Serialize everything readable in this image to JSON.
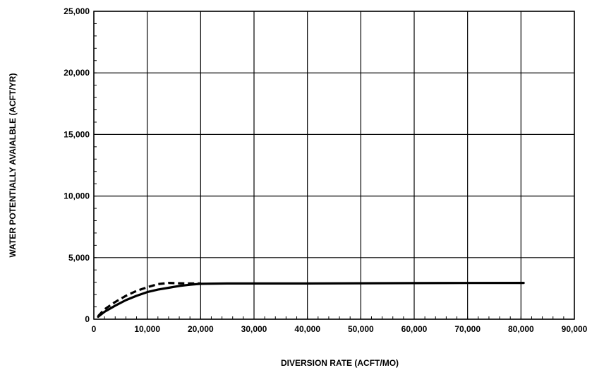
{
  "chart_data": {
    "type": "line",
    "title": "",
    "xlabel": "DIVERSION RATE (ACFT/MO)",
    "ylabel": "WATER POTENTIALLY AVAIALBLE (ACFT/YR)",
    "xlim": [
      0,
      90000
    ],
    "ylim": [
      0,
      25000
    ],
    "x_ticks": [
      0,
      10000,
      20000,
      30000,
      40000,
      50000,
      60000,
      70000,
      80000,
      90000
    ],
    "x_tick_labels": [
      "0",
      "10,000",
      "20,000",
      "30,000",
      "40,000",
      "50,000",
      "60,000",
      "70,000",
      "80,000",
      "90,000"
    ],
    "y_ticks": [
      0,
      5000,
      10000,
      15000,
      20000,
      25000
    ],
    "y_tick_labels": [
      "0",
      "5,000",
      "10,000",
      "15,000",
      "20,000",
      "25,000"
    ],
    "grid": true,
    "legend": "none",
    "series": [
      {
        "style": "solid",
        "color": "#000000",
        "x": [
          800,
          2000,
          4000,
          6000,
          8000,
          10000,
          12000,
          14000,
          16000,
          18000,
          20000,
          25000,
          30000,
          40000,
          50000,
          60000,
          70000,
          80500
        ],
        "y": [
          200,
          600,
          1100,
          1550,
          1900,
          2200,
          2400,
          2550,
          2700,
          2800,
          2870,
          2900,
          2900,
          2900,
          2920,
          2930,
          2940,
          2950
        ]
      },
      {
        "style": "dashed",
        "color": "#000000",
        "x": [
          800,
          2000,
          4000,
          6000,
          8000,
          10000,
          12000,
          14000,
          16000,
          18000,
          20000
        ],
        "y": [
          250,
          800,
          1400,
          1900,
          2300,
          2600,
          2850,
          2950,
          2920,
          2900,
          2900
        ]
      }
    ]
  }
}
